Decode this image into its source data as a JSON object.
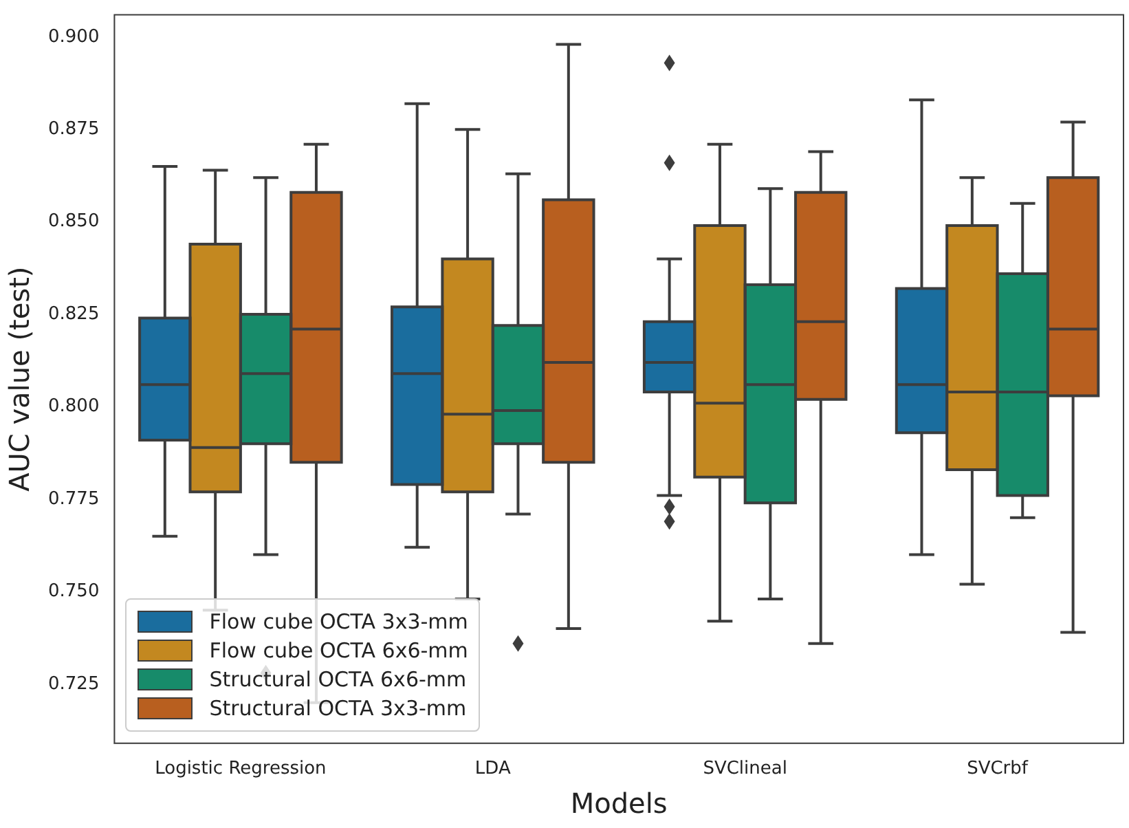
{
  "chart_data": {
    "type": "box",
    "xlabel": "Models",
    "ylabel": "AUC value (test)",
    "categories": [
      "Logistic Regression",
      "LDA",
      "SVClineal",
      "SVCrbf"
    ],
    "ylim": [
      0.709,
      0.906
    ],
    "yticks": [
      {
        "value": 0.725,
        "label": "0.725"
      },
      {
        "value": 0.75,
        "label": "0.750"
      },
      {
        "value": 0.775,
        "label": "0.775"
      },
      {
        "value": 0.8,
        "label": "0.800"
      },
      {
        "value": 0.825,
        "label": "0.825"
      },
      {
        "value": 0.85,
        "label": "0.850"
      },
      {
        "value": 0.875,
        "label": "0.875"
      },
      {
        "value": 0.9,
        "label": "0.900"
      }
    ],
    "grid": false,
    "legend": "bottom left",
    "series": [
      {
        "name": "Flow cube OCTA 3x3-mm",
        "color": "#1a6d9e",
        "boxes": [
          {
            "low": 0.765,
            "q1": 0.791,
            "median": 0.806,
            "q3": 0.824,
            "high": 0.865
          },
          {
            "low": 0.762,
            "q1": 0.779,
            "median": 0.809,
            "q3": 0.827,
            "high": 0.882
          },
          {
            "low": 0.776,
            "q1": 0.804,
            "median": 0.812,
            "q3": 0.823,
            "high": 0.84,
            "outliers": [
              0.893,
              0.866,
              0.773,
              0.769
            ]
          },
          {
            "low": 0.76,
            "q1": 0.793,
            "median": 0.806,
            "q3": 0.832,
            "high": 0.883
          }
        ]
      },
      {
        "name": "Flow cube OCTA 6x6-mm",
        "color": "#c38820",
        "boxes": [
          {
            "low": 0.745,
            "q1": 0.777,
            "median": 0.789,
            "q3": 0.844,
            "high": 0.864
          },
          {
            "low": 0.748,
            "q1": 0.777,
            "median": 0.798,
            "q3": 0.84,
            "high": 0.875
          },
          {
            "low": 0.742,
            "q1": 0.781,
            "median": 0.801,
            "q3": 0.849,
            "high": 0.871
          },
          {
            "low": 0.752,
            "q1": 0.783,
            "median": 0.804,
            "q3": 0.849,
            "high": 0.862
          }
        ]
      },
      {
        "name": "Structural OCTA 6x6-mm",
        "color": "#178b6a",
        "boxes": [
          {
            "low": 0.76,
            "q1": 0.79,
            "median": 0.809,
            "q3": 0.825,
            "high": 0.862,
            "outliers": [
              0.728
            ]
          },
          {
            "low": 0.771,
            "q1": 0.79,
            "median": 0.799,
            "q3": 0.822,
            "high": 0.863,
            "outliers": [
              0.736
            ]
          },
          {
            "low": 0.748,
            "q1": 0.774,
            "median": 0.806,
            "q3": 0.833,
            "high": 0.859
          },
          {
            "low": 0.77,
            "q1": 0.776,
            "median": 0.804,
            "q3": 0.836,
            "high": 0.855
          }
        ]
      },
      {
        "name": "Structural OCTA 3x3-mm",
        "color": "#b85f1f",
        "boxes": [
          {
            "low": 0.72,
            "q1": 0.785,
            "median": 0.821,
            "q3": 0.858,
            "high": 0.871
          },
          {
            "low": 0.74,
            "q1": 0.785,
            "median": 0.812,
            "q3": 0.856,
            "high": 0.898
          },
          {
            "low": 0.736,
            "q1": 0.802,
            "median": 0.823,
            "q3": 0.858,
            "high": 0.869
          },
          {
            "low": 0.739,
            "q1": 0.803,
            "median": 0.821,
            "q3": 0.862,
            "high": 0.877
          }
        ]
      }
    ]
  }
}
